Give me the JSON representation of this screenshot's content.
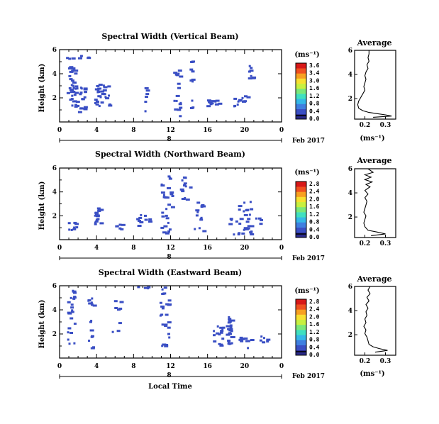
{
  "colors": {
    "pixel": "#3a4fc4",
    "axis": "#000000"
  },
  "colorbar_colors": [
    "#2a2a8a",
    "#3a4fc4",
    "#3f7fe0",
    "#35b8e8",
    "#40e0c0",
    "#7be87a",
    "#c8f040",
    "#f8e030",
    "#f8a020",
    "#f05020",
    "#d81818"
  ],
  "xaxis": {
    "label": "Local Time",
    "ticks": [
      "0",
      "4",
      "8",
      "12",
      "16",
      "20",
      "0"
    ],
    "mid_label": "8",
    "date": "Feb 2017"
  },
  "avg_xlabel": "(ms⁻¹)",
  "chart_data": [
    {
      "type": "heatmap",
      "title": "Spectral Width (Vertical Beam)",
      "ylabel": "Height (km)",
      "yticks": [
        "6",
        "4",
        "2"
      ],
      "xlim": [
        0,
        24
      ],
      "ylim": [
        0,
        6
      ],
      "cbar_title": "(ms⁻¹)",
      "cbar_ticks": [
        "3.6",
        "3.4",
        "3.0",
        "1.6",
        "1.2",
        "0.8",
        "0.4",
        "0.0"
      ],
      "clusters": [
        [
          1.2,
          3.5,
          1.0,
          4.5,
          26
        ],
        [
          2.0,
          2.0,
          1.5,
          2.2,
          28
        ],
        [
          4.5,
          2.3,
          1.6,
          1.8,
          30
        ],
        [
          9.2,
          2.0,
          0.3,
          2.5,
          6
        ],
        [
          12.6,
          2.3,
          0.8,
          4.5,
          18
        ],
        [
          14.2,
          3.0,
          0.3,
          4.6,
          10
        ],
        [
          16.5,
          1.6,
          1.5,
          0.6,
          8
        ],
        [
          19.5,
          1.8,
          1.6,
          0.9,
          12
        ],
        [
          20.6,
          4.5,
          0.5,
          1.6,
          8
        ],
        [
          2.6,
          5.5,
          1.3,
          0.4,
          4
        ],
        [
          16.0,
          1.5,
          0.6,
          0.4,
          4
        ]
      ],
      "avg_title": "Average",
      "avg_xticks": [
        "0.2",
        "0.3"
      ],
      "avg_yticks": [
        "6",
        "4",
        "2"
      ],
      "avg_profile": [
        [
          0.22,
          6.0
        ],
        [
          0.22,
          5.7
        ],
        [
          0.215,
          5.4
        ],
        [
          0.22,
          5.1
        ],
        [
          0.21,
          4.8
        ],
        [
          0.215,
          4.5
        ],
        [
          0.205,
          4.2
        ],
        [
          0.2,
          3.9
        ],
        [
          0.205,
          3.6
        ],
        [
          0.2,
          3.3
        ],
        [
          0.195,
          3.0
        ],
        [
          0.2,
          2.7
        ],
        [
          0.19,
          2.4
        ],
        [
          0.18,
          2.1
        ],
        [
          0.17,
          1.8
        ],
        [
          0.165,
          1.5
        ],
        [
          0.17,
          1.2
        ],
        [
          0.19,
          1.0
        ],
        [
          0.22,
          0.85
        ],
        [
          0.26,
          0.75
        ],
        [
          0.3,
          0.65
        ],
        [
          0.33,
          0.55
        ],
        [
          0.24,
          0.45
        ]
      ]
    },
    {
      "type": "heatmap",
      "title": "Spectral Width (Northward Beam)",
      "ylabel": "Height (km)",
      "yticks": [
        "6",
        "4",
        "2"
      ],
      "xlim": [
        0,
        24
      ],
      "ylim": [
        0,
        6
      ],
      "cbar_title": "(ms⁻¹)",
      "cbar_ticks": [
        "2.8",
        "2.4",
        "2.0",
        "1.6",
        "1.2",
        "0.8",
        "0.4",
        "0.0"
      ],
      "clusters": [
        [
          4.0,
          2.0,
          0.9,
          1.6,
          18
        ],
        [
          1.5,
          1.2,
          1.5,
          0.8,
          8
        ],
        [
          9.0,
          1.5,
          1.5,
          1.3,
          10
        ],
        [
          11.5,
          3.0,
          1.2,
          5.0,
          28
        ],
        [
          13.5,
          4.2,
          1.0,
          2.2,
          12
        ],
        [
          15.0,
          2.0,
          1.3,
          2.5,
          14
        ],
        [
          19.5,
          2.0,
          2.5,
          3.0,
          26
        ],
        [
          21.0,
          1.2,
          2.0,
          1.5,
          12
        ],
        [
          6.5,
          1.2,
          1.0,
          0.5,
          6
        ]
      ],
      "avg_title": "Average",
      "avg_xticks": [
        "0.2",
        "0.3"
      ],
      "avg_yticks": [
        "6",
        "4",
        "2"
      ],
      "avg_profile": [
        [
          0.215,
          6.0
        ],
        [
          0.24,
          5.7
        ],
        [
          0.2,
          5.5
        ],
        [
          0.23,
          5.3
        ],
        [
          0.2,
          5.1
        ],
        [
          0.235,
          4.9
        ],
        [
          0.205,
          4.7
        ],
        [
          0.225,
          4.5
        ],
        [
          0.2,
          4.2
        ],
        [
          0.215,
          3.9
        ],
        [
          0.2,
          3.6
        ],
        [
          0.21,
          3.3
        ],
        [
          0.205,
          3.0
        ],
        [
          0.2,
          2.7
        ],
        [
          0.195,
          2.4
        ],
        [
          0.205,
          2.1
        ],
        [
          0.2,
          1.8
        ],
        [
          0.195,
          1.5
        ],
        [
          0.2,
          1.2
        ],
        [
          0.215,
          0.9
        ],
        [
          0.26,
          0.75
        ],
        [
          0.3,
          0.6
        ],
        [
          0.23,
          0.45
        ]
      ]
    },
    {
      "type": "heatmap",
      "title": "Spectral Width (Eastward Beam)",
      "ylabel": "Height (km)",
      "yticks": [
        "6",
        "4",
        "2"
      ],
      "xlim": [
        0,
        24
      ],
      "ylim": [
        0,
        6
      ],
      "cbar_title": "(ms⁻¹)",
      "cbar_ticks": [
        "2.8",
        "2.4",
        "2.0",
        "1.6",
        "1.2",
        "0.8",
        "0.4",
        "0.0"
      ],
      "clusters": [
        [
          1.2,
          3.5,
          0.8,
          4.5,
          22
        ],
        [
          3.3,
          3.0,
          0.6,
          4.5,
          16
        ],
        [
          6.0,
          3.5,
          1.5,
          3.0,
          8
        ],
        [
          11.3,
          3.5,
          1.0,
          5.0,
          26
        ],
        [
          17.5,
          2.0,
          2.0,
          2.0,
          26
        ],
        [
          18.3,
          2.6,
          0.5,
          1.8,
          14
        ],
        [
          20.0,
          1.4,
          1.5,
          1.0,
          10
        ],
        [
          22.0,
          1.5,
          0.8,
          0.8,
          6
        ],
        [
          9.0,
          5.9,
          1.5,
          0.2,
          4
        ]
      ],
      "avg_title": "Average",
      "avg_xticks": [
        "0.2",
        "0.3"
      ],
      "avg_yticks": [
        "6",
        "4",
        "2"
      ],
      "avg_profile": [
        [
          0.225,
          6.0
        ],
        [
          0.215,
          5.7
        ],
        [
          0.225,
          5.4
        ],
        [
          0.21,
          5.1
        ],
        [
          0.22,
          4.8
        ],
        [
          0.205,
          4.5
        ],
        [
          0.215,
          4.2
        ],
        [
          0.205,
          3.9
        ],
        [
          0.21,
          3.6
        ],
        [
          0.2,
          3.3
        ],
        [
          0.205,
          3.0
        ],
        [
          0.195,
          2.7
        ],
        [
          0.205,
          2.4
        ],
        [
          0.2,
          2.1
        ],
        [
          0.21,
          1.8
        ],
        [
          0.215,
          1.5
        ],
        [
          0.22,
          1.2
        ],
        [
          0.24,
          1.0
        ],
        [
          0.27,
          0.85
        ],
        [
          0.31,
          0.7
        ],
        [
          0.25,
          0.55
        ]
      ]
    }
  ]
}
